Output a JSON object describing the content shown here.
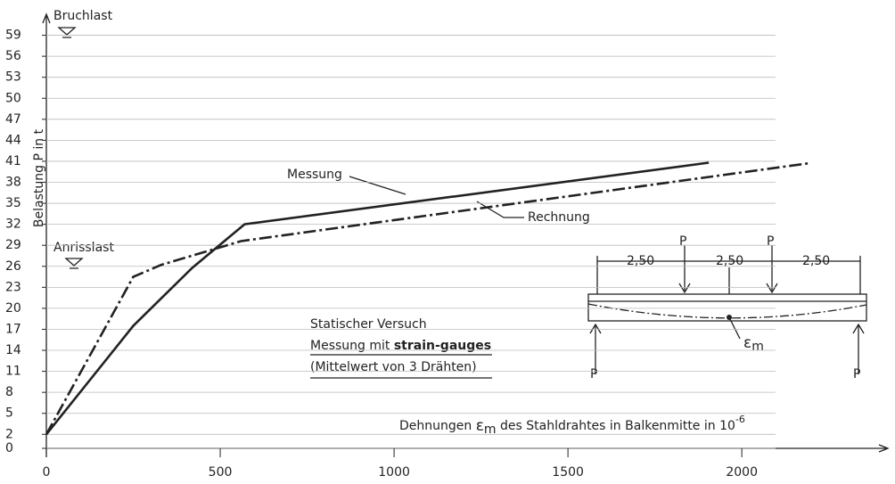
{
  "chart_data": {
    "type": "line",
    "y_label": "Belastung P in t",
    "x_label": [
      "Dehnungen",
      "ε",
      "m",
      "des Stahldrahtes in Balkenmitte in 10",
      "-6"
    ],
    "xlim": [
      0,
      2420
    ],
    "ylim": [
      0,
      62
    ],
    "xticks": [
      0,
      500,
      1000,
      1500,
      2000
    ],
    "yticks": [
      0,
      2,
      5,
      8,
      11,
      14,
      17,
      20,
      23,
      26,
      29,
      32,
      35,
      38,
      41,
      44,
      47,
      50,
      53,
      56,
      59
    ],
    "grid": true,
    "series": [
      {
        "name": "Messung",
        "color": "#222",
        "dash": "solid",
        "x": [
          0,
          250,
          420,
          570,
          1905
        ],
        "values": [
          2,
          17.5,
          25.8,
          32,
          40.8
        ]
      },
      {
        "name": "Rechnung",
        "color": "#222",
        "dash": "dashdot",
        "x": [
          0,
          250,
          330,
          560,
          2190
        ],
        "values": [
          2,
          24.5,
          26.2,
          29.6,
          40.7
        ]
      }
    ],
    "annotations": {
      "bruchlast": "Bruchlast",
      "anrisslast": "Anrisslast"
    },
    "note": [
      "Statischer Versuch",
      "Messung mit",
      "strain-gauges",
      "(Mittelwert von 3 Drähten)"
    ],
    "diagram": {
      "spans": [
        "2,50",
        "2,50",
        "2,50"
      ],
      "loads": [
        "P",
        "P",
        "P",
        "P"
      ],
      "strain": [
        "ε",
        "m"
      ]
    }
  }
}
